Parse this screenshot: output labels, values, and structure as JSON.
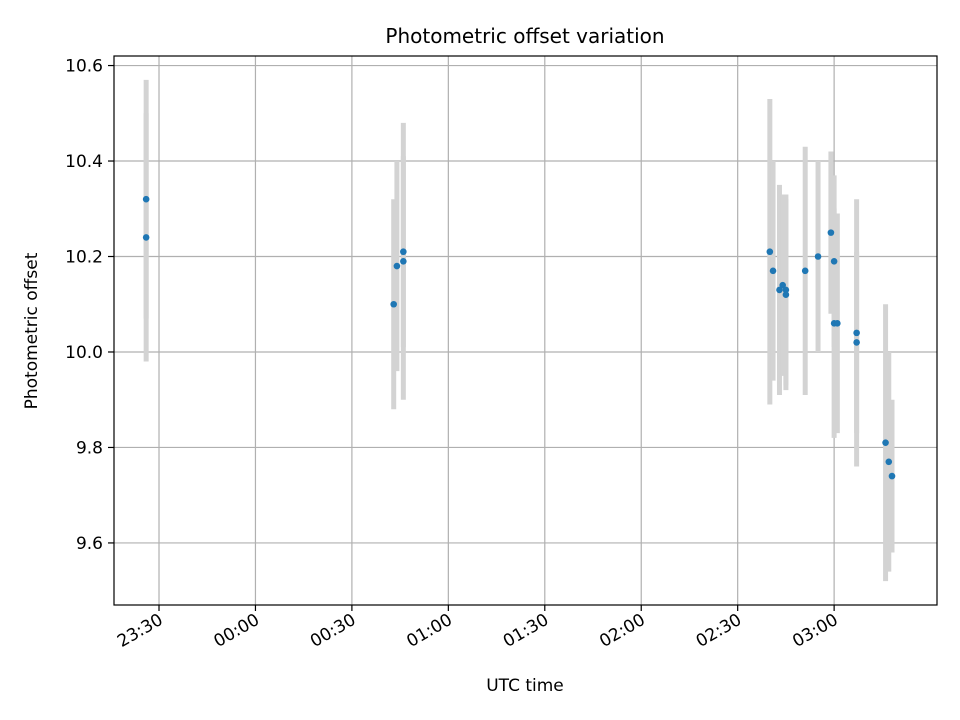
{
  "chart_data": {
    "type": "scatter",
    "title": "Photometric offset variation",
    "xlabel": "UTC time",
    "ylabel": "Photometric offset",
    "xlim": [
      "23:16",
      "03:32"
    ],
    "ylim": [
      9.47,
      10.62
    ],
    "x_ticks": [
      "23:30",
      "00:00",
      "00:30",
      "01:00",
      "01:30",
      "02:00",
      "02:30",
      "03:00"
    ],
    "y_ticks": [
      9.6,
      9.8,
      10.0,
      10.2,
      10.4,
      10.6
    ],
    "grid": true,
    "colors": {
      "point": "#1f77b4",
      "error_bar": "#d3d3d3",
      "grid": "#b0b0b0"
    },
    "points": [
      {
        "time": "23:26",
        "offset": 10.32,
        "error": 0.25
      },
      {
        "time": "23:26",
        "offset": 10.24,
        "error": 0.26
      },
      {
        "time": "00:43",
        "offset": 10.1,
        "error": 0.22
      },
      {
        "time": "00:44",
        "offset": 10.18,
        "error": 0.22
      },
      {
        "time": "00:46",
        "offset": 10.21,
        "error": 0.2
      },
      {
        "time": "00:46",
        "offset": 10.19,
        "error": 0.29
      },
      {
        "time": "02:40",
        "offset": 10.21,
        "error": 0.32
      },
      {
        "time": "02:41",
        "offset": 10.17,
        "error": 0.23
      },
      {
        "time": "02:43",
        "offset": 10.13,
        "error": 0.22
      },
      {
        "time": "02:44",
        "offset": 10.14,
        "error": 0.19
      },
      {
        "time": "02:45",
        "offset": 10.13,
        "error": 0.2
      },
      {
        "time": "02:45",
        "offset": 10.12,
        "error": 0.2
      },
      {
        "time": "02:51",
        "offset": 10.17,
        "error": 0.26
      },
      {
        "time": "02:55",
        "offset": 10.2,
        "error": 0.2
      },
      {
        "time": "02:59",
        "offset": 10.25,
        "error": 0.17
      },
      {
        "time": "03:00",
        "offset": 10.19,
        "error": 0.18
      },
      {
        "time": "03:00",
        "offset": 10.06,
        "error": 0.24
      },
      {
        "time": "03:01",
        "offset": 10.06,
        "error": 0.23
      },
      {
        "time": "03:07",
        "offset": 10.04,
        "error": 0.28
      },
      {
        "time": "03:07",
        "offset": 10.02,
        "error": 0.19
      },
      {
        "time": "03:16",
        "offset": 9.81,
        "error": 0.29
      },
      {
        "time": "03:17",
        "offset": 9.77,
        "error": 0.23
      },
      {
        "time": "03:18",
        "offset": 9.74,
        "error": 0.16
      }
    ]
  }
}
